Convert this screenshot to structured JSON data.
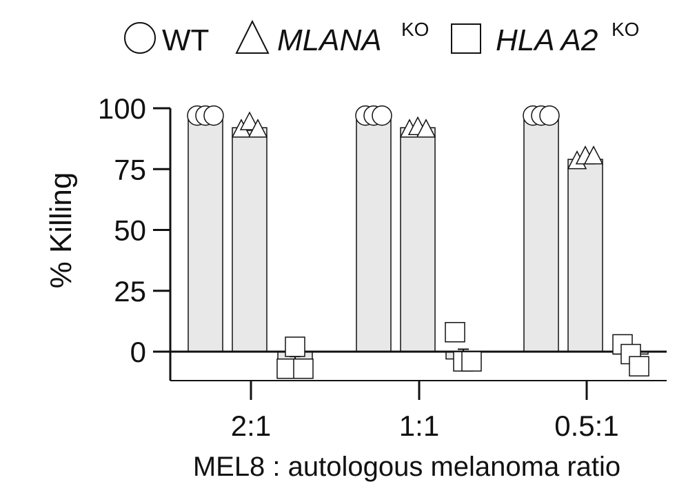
{
  "chart_data": {
    "type": "bar",
    "ylabel": "% Killing",
    "xlabel": "MEL8 : autologous melanoma ratio",
    "ylim": [
      -12,
      100
    ],
    "yticks": [
      0,
      25,
      50,
      75,
      100
    ],
    "ytick_labels": [
      "0",
      "25",
      "50",
      "75",
      "100"
    ],
    "grid": false,
    "legend_position": "top",
    "categories": [
      "2:1",
      "1:1",
      "0.5:1"
    ],
    "colors": {
      "bar_fill": "#e8e8e8",
      "stroke": "#111111",
      "marker_fill": "#ffffff"
    },
    "series": [
      {
        "name": "WT",
        "superscript": "",
        "italic": false,
        "marker": "circle",
        "values": [
          97,
          97,
          97
        ],
        "replicates": [
          [
            97,
            97,
            97
          ],
          [
            97,
            97,
            97
          ],
          [
            97,
            97,
            97
          ]
        ]
      },
      {
        "name": "MLANA",
        "superscript": "KO",
        "italic": true,
        "marker": "triangle",
        "values": [
          92,
          92,
          79
        ],
        "replicates": [
          [
            91,
            94,
            91
          ],
          [
            91,
            92,
            91
          ],
          [
            78,
            80,
            80
          ]
        ]
      },
      {
        "name": "HLA A2",
        "superscript": "KO",
        "italic": true,
        "marker": "square",
        "values": [
          -5,
          -3,
          -1
        ],
        "replicates": [
          [
            -7,
            2,
            -7
          ],
          [
            8,
            -4,
            -4
          ],
          [
            3,
            -1,
            -6
          ]
        ]
      }
    ]
  }
}
